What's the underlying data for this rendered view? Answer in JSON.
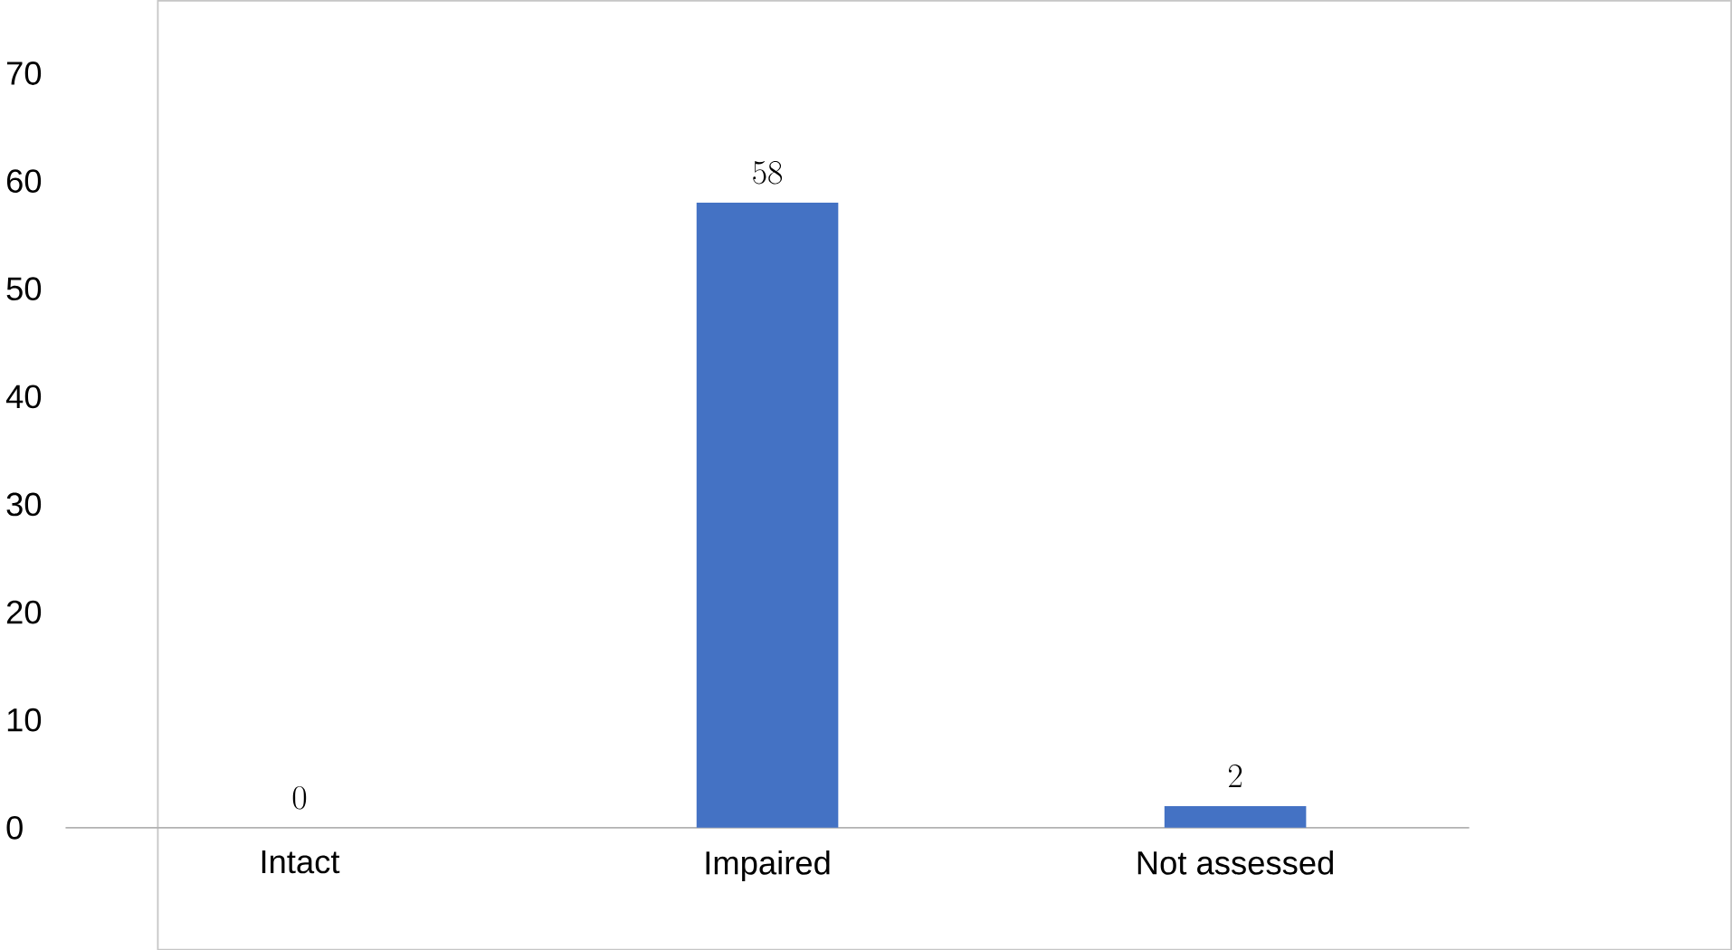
{
  "chart_data": {
    "type": "bar",
    "categories": [
      "Intact",
      "Impaired",
      "Not assessed"
    ],
    "values": [
      0,
      58,
      2
    ],
    "color": "#4472c4",
    "ylim": [
      0,
      70
    ],
    "yticks": [
      0,
      10,
      20,
      30,
      40,
      50,
      60,
      70
    ],
    "data_labels": true
  }
}
